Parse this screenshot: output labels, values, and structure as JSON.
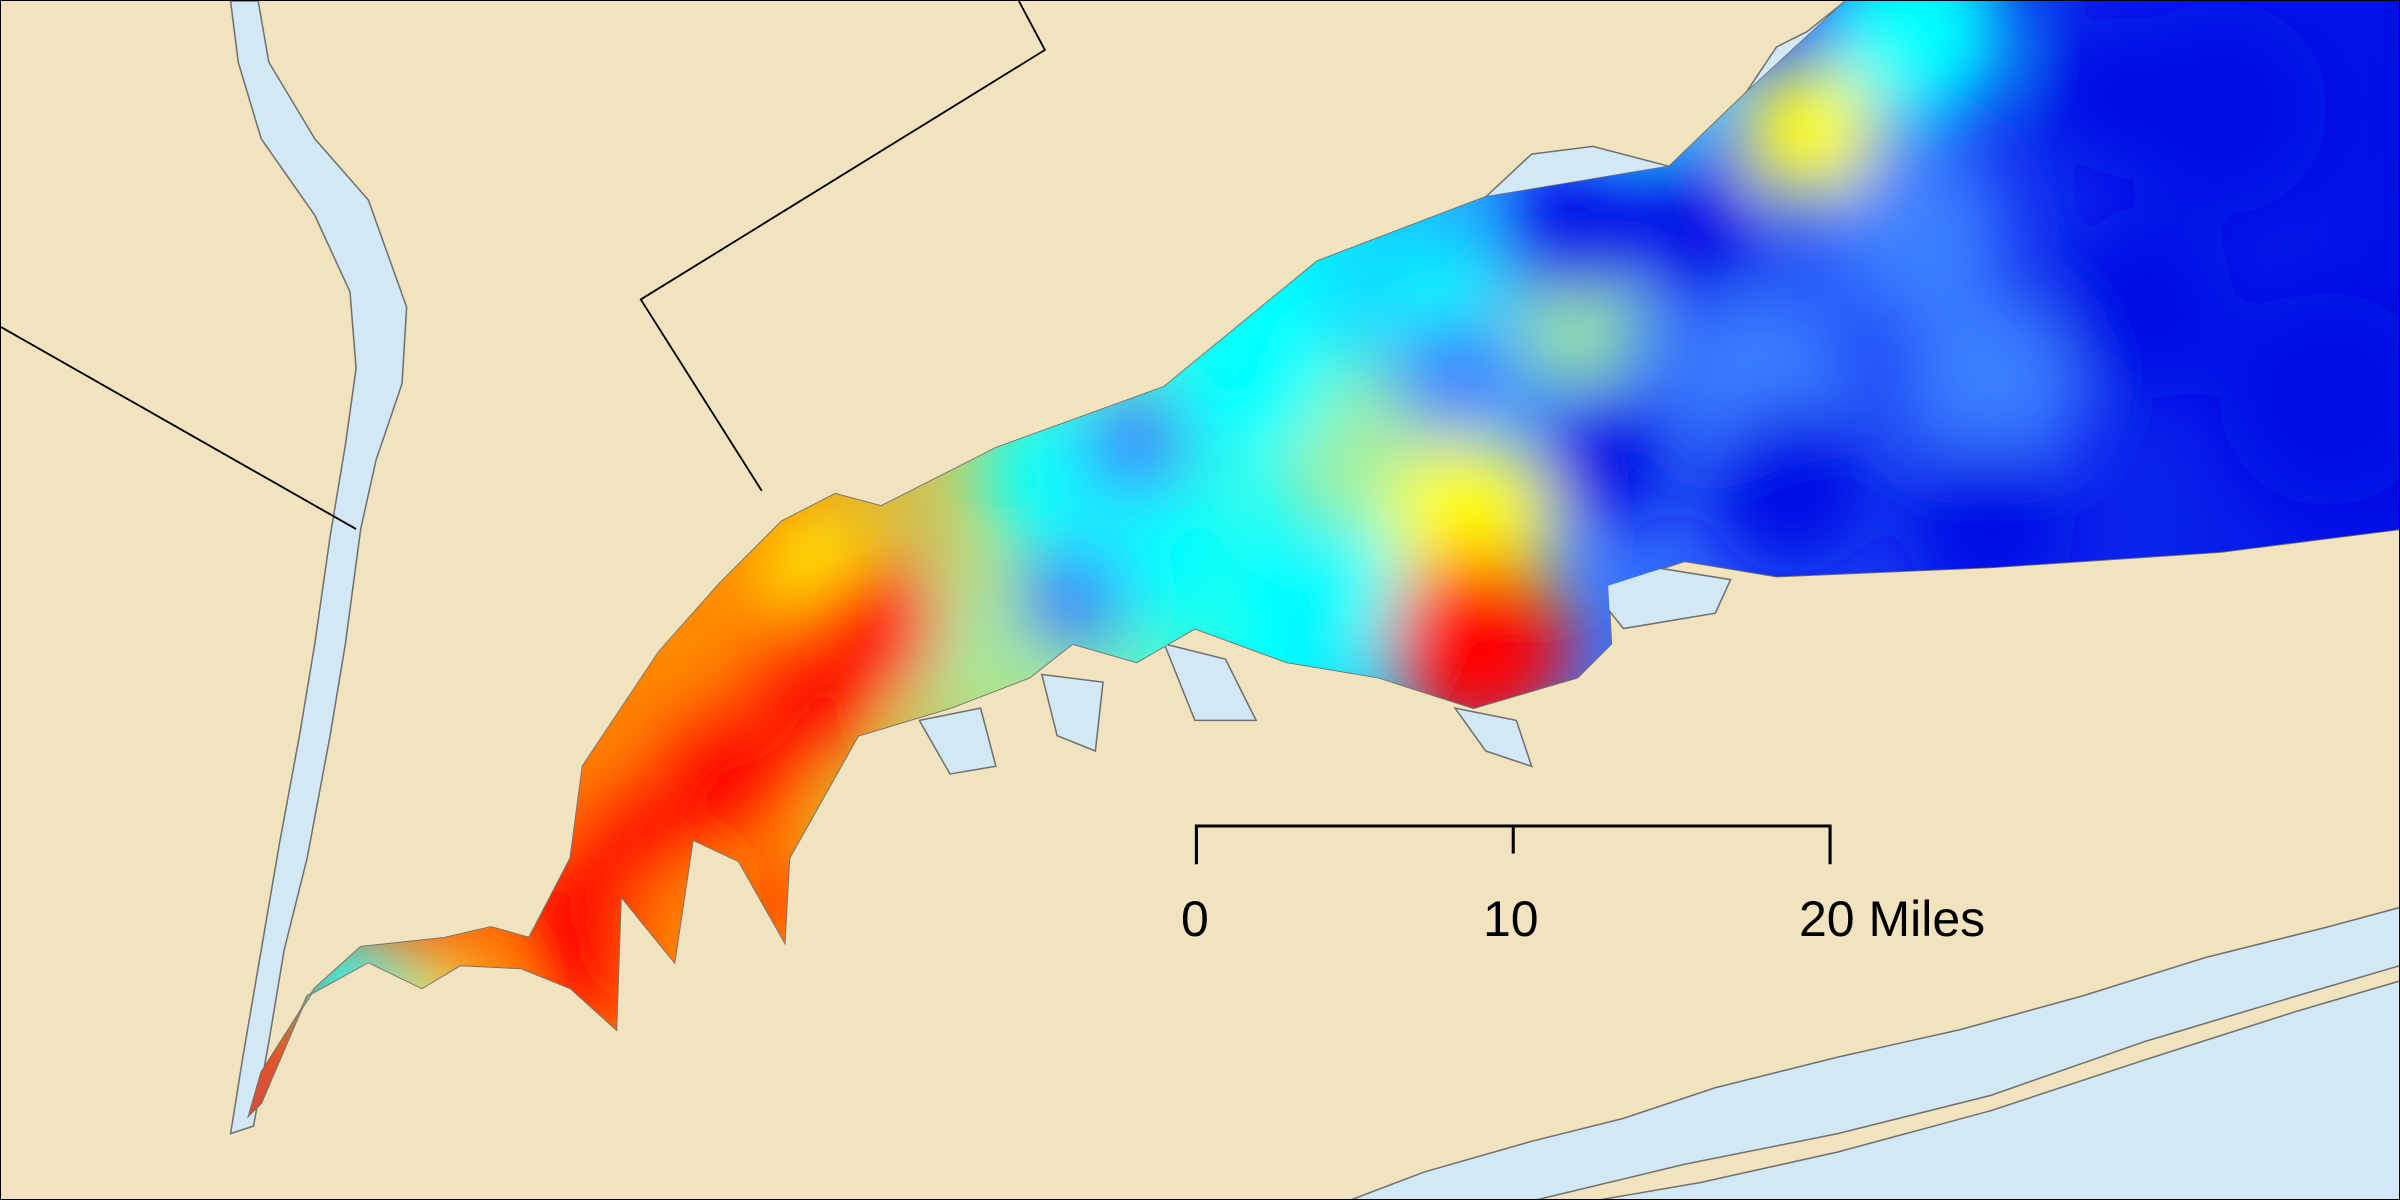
{
  "map": {
    "colors": {
      "land": "#F0E3BD",
      "water": "#D3E8F5",
      "coastline": "#707070",
      "boundary": "#000000",
      "heat_high": "#FF0000",
      "heat_mid_high": "#FF8C00",
      "heat_mid": "#FFFF00",
      "heat_mid_low": "#A0F0A0",
      "heat_low": "#00FFFF",
      "heat_lower": "#3A7FFF",
      "heat_lowest": "#0010E6"
    },
    "scale_bar": {
      "labels": [
        "0",
        "10",
        "20 Miles"
      ],
      "unit": "Miles"
    }
  }
}
